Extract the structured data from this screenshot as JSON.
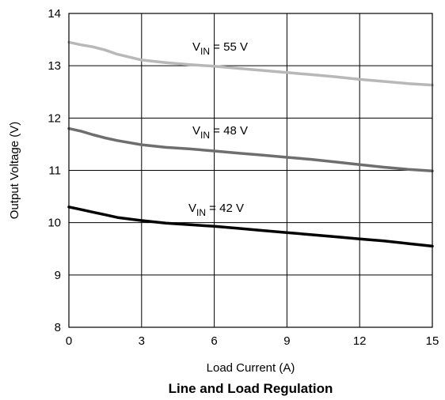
{
  "chart_data": {
    "type": "line",
    "title": "Line and Load Regulation",
    "xlabel": "Load Current (A)",
    "ylabel": "Output Voltage (V)",
    "xlim": [
      0,
      15
    ],
    "ylim": [
      8,
      14
    ],
    "xticks": [
      0,
      3,
      6,
      9,
      12,
      15
    ],
    "yticks": [
      8,
      9,
      10,
      11,
      12,
      13,
      14
    ],
    "grid": true,
    "legend": "none",
    "series": [
      {
        "name": "VIN = 55 V",
        "label_main": "V",
        "label_sub": "IN",
        "label_rest": " = 55 V",
        "color": "#b8b8b8",
        "x": [
          0,
          0.5,
          1,
          1.5,
          2,
          3,
          4,
          5,
          6,
          7,
          8,
          9,
          10,
          11,
          12,
          13,
          14,
          15
        ],
        "y": [
          13.45,
          13.4,
          13.36,
          13.3,
          13.22,
          13.11,
          13.06,
          13.02,
          12.99,
          12.95,
          12.91,
          12.87,
          12.83,
          12.79,
          12.74,
          12.7,
          12.66,
          12.63
        ]
      },
      {
        "name": "VIN = 48 V",
        "label_main": "V",
        "label_sub": "IN",
        "label_rest": " = 48 V",
        "color": "#6e6e6e",
        "x": [
          0,
          0.5,
          1,
          1.5,
          2,
          3,
          4,
          5,
          6,
          7,
          8,
          9,
          10,
          11,
          12,
          13,
          14,
          15
        ],
        "y": [
          11.8,
          11.75,
          11.68,
          11.62,
          11.57,
          11.49,
          11.44,
          11.41,
          11.37,
          11.33,
          11.29,
          11.25,
          11.21,
          11.16,
          11.11,
          11.06,
          11.02,
          10.99
        ]
      },
      {
        "name": "VIN = 42 V",
        "label_main": "V",
        "label_sub": "IN",
        "label_rest": " = 42 V",
        "color": "#000000",
        "x": [
          0,
          0.5,
          1,
          1.5,
          2,
          3,
          4,
          5,
          6,
          7,
          8,
          9,
          10,
          11,
          12,
          13,
          14,
          15
        ],
        "y": [
          10.3,
          10.25,
          10.2,
          10.15,
          10.1,
          10.04,
          9.99,
          9.96,
          9.93,
          9.89,
          9.85,
          9.81,
          9.77,
          9.73,
          9.69,
          9.65,
          9.6,
          9.55
        ]
      }
    ]
  }
}
